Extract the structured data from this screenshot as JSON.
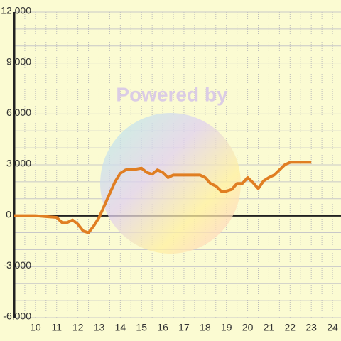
{
  "chart_data": {
    "type": "line",
    "watermark": "Powered by",
    "x": [
      9,
      10,
      10.5,
      11,
      11.25,
      11.5,
      11.75,
      12,
      12.25,
      12.5,
      12.75,
      13,
      13.25,
      13.5,
      13.75,
      14,
      14.25,
      14.5,
      14.75,
      15,
      15.25,
      15.5,
      15.75,
      16,
      16.25,
      16.5,
      16.75,
      17,
      17.25,
      17.5,
      17.75,
      18,
      18.25,
      18.5,
      18.75,
      19,
      19.25,
      19.5,
      19.75,
      20,
      20.25,
      20.5,
      20.75,
      21,
      21.25,
      21.5,
      21.75,
      22,
      22.25,
      22.5,
      22.75,
      23
    ],
    "series": [
      {
        "color": "#e07e22",
        "values": [
          0,
          0,
          -50,
          -100,
          -400,
          -400,
          -250,
          -500,
          -900,
          -1000,
          -600,
          -100,
          600,
          1300,
          2000,
          2500,
          2700,
          2750,
          2750,
          2800,
          2550,
          2450,
          2700,
          2550,
          2250,
          2400,
          2400,
          2400,
          2400,
          2400,
          2400,
          2250,
          1900,
          1750,
          1450,
          1450,
          1550,
          1900,
          1900,
          2250,
          1950,
          1600,
          2050,
          2250,
          2400,
          2700,
          3000,
          3150,
          3150,
          3150,
          3150,
          3150
        ]
      }
    ],
    "xlim": [
      9,
      24.4
    ],
    "xticks": [
      10,
      11,
      12,
      13,
      14,
      15,
      16,
      17,
      18,
      19,
      20,
      21,
      22,
      23,
      24
    ],
    "ylim": [
      -6000,
      12000
    ],
    "yticks": [
      {
        "value": -6000,
        "label": "-6,000"
      },
      {
        "value": -3000,
        "label": "-3,000"
      },
      0,
      {
        "value": 3000,
        "label": "3,000"
      },
      {
        "value": 6000,
        "label": "6,000"
      },
      {
        "value": 9000,
        "label": "9,000"
      },
      {
        "value": 12000,
        "label": "12,000"
      }
    ],
    "y_gridlines": [
      -5000,
      -4000,
      -2000,
      -1000,
      1000,
      2000,
      4000,
      5000,
      7000,
      8000,
      10000,
      11000
    ],
    "x_gridlines": [
      9.5,
      10.5,
      11.5,
      12.5,
      13.5,
      14.5,
      15.5,
      16.5,
      17.5,
      18.5,
      19.5,
      20.5,
      21.5,
      22.5,
      23.5
    ],
    "grid": true
  }
}
